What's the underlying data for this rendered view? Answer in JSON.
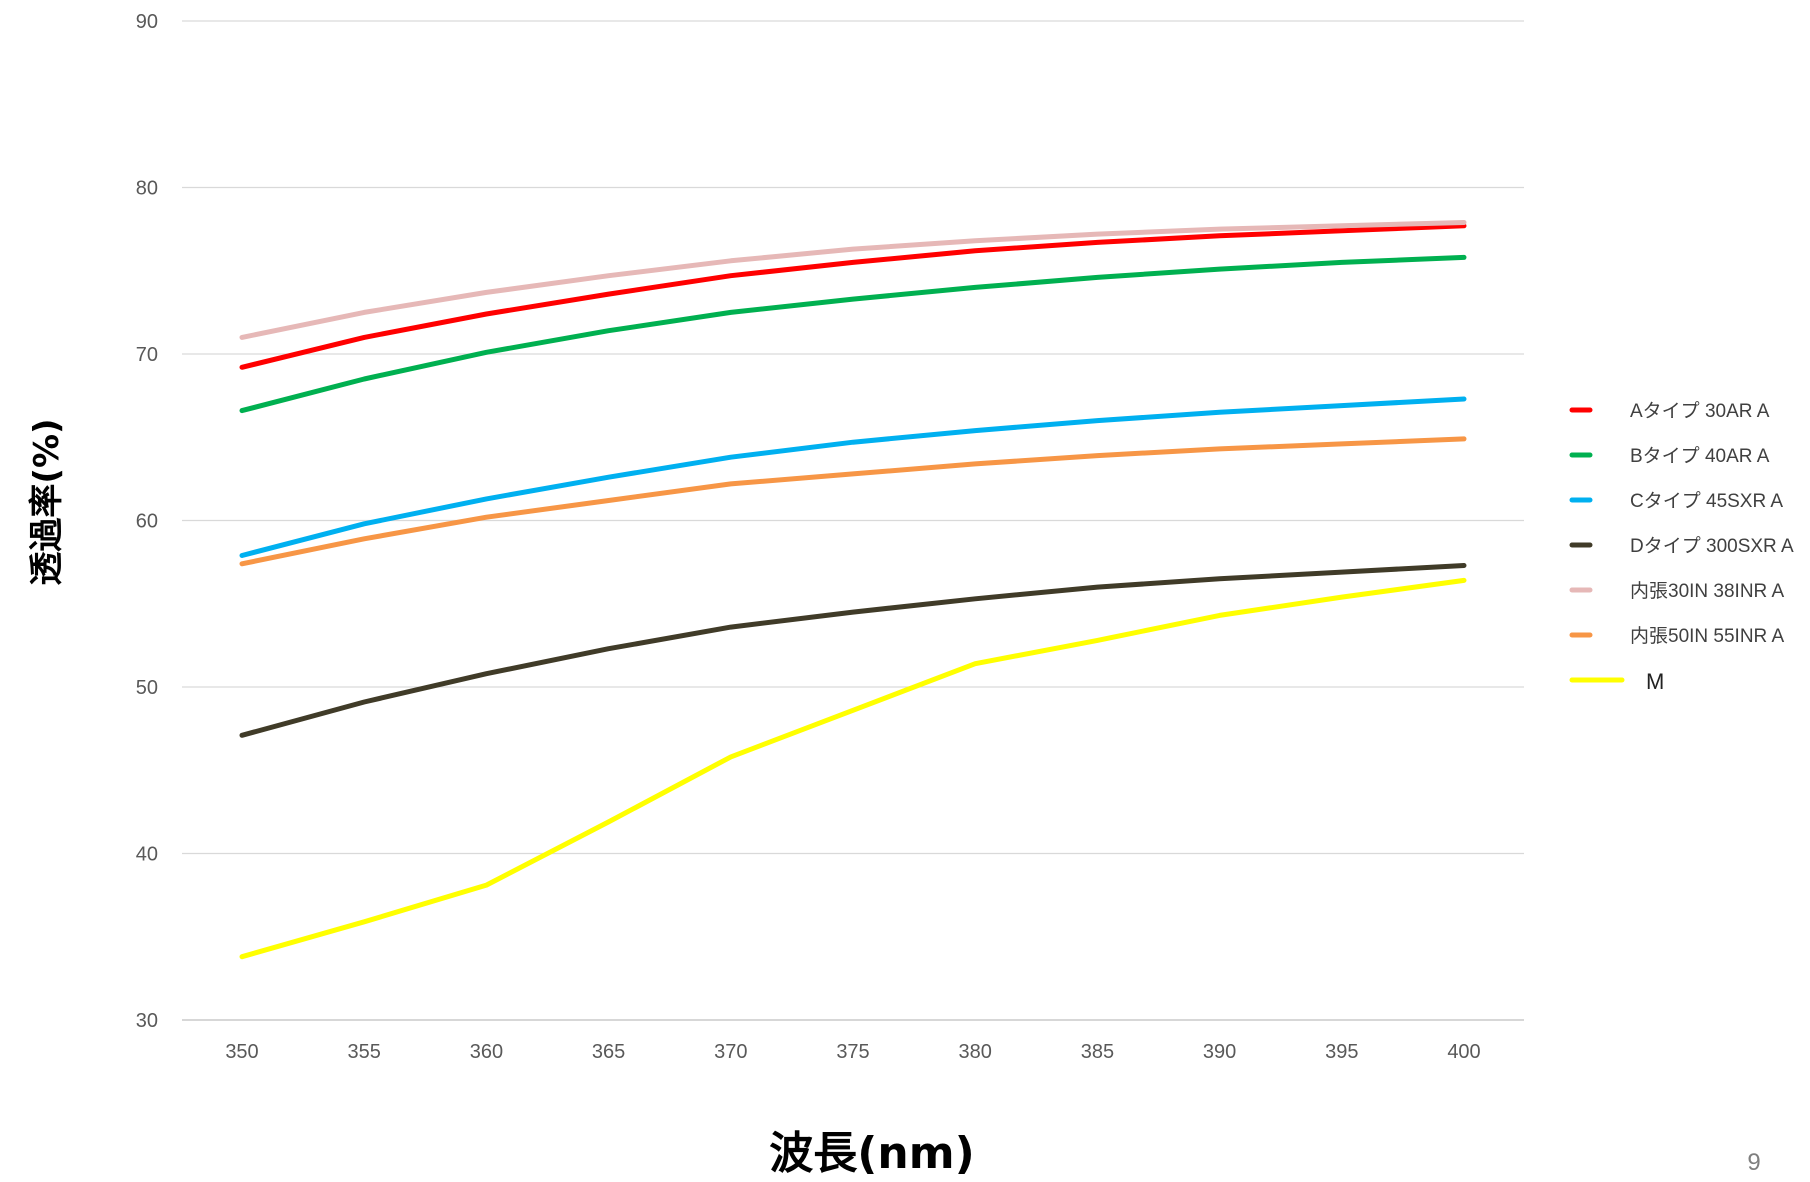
{
  "page_number": "9",
  "chart_data": {
    "type": "line",
    "title": "",
    "xlabel": "波長(nm)",
    "ylabel": "透過率(%)",
    "x": [
      350,
      355,
      360,
      365,
      370,
      375,
      380,
      385,
      390,
      395,
      400
    ],
    "x_tick_labels": [
      "350",
      "355",
      "360",
      "365",
      "370",
      "375",
      "380",
      "385",
      "390",
      "395",
      "400"
    ],
    "ylim": [
      30,
      90
    ],
    "y_ticks": [
      30,
      40,
      50,
      60,
      70,
      80,
      90
    ],
    "y_tick_labels": [
      "30",
      "40",
      "50",
      "60",
      "70",
      "80",
      "90"
    ],
    "grid": true,
    "legend_position": "right",
    "series": [
      {
        "name": "Aタイプ 30AR A",
        "color": "#ff0000",
        "values": [
          69.2,
          71.0,
          72.4,
          73.6,
          74.7,
          75.5,
          76.2,
          76.7,
          77.1,
          77.4,
          77.7
        ]
      },
      {
        "name": "Bタイプ 40AR A",
        "color": "#00b050",
        "values": [
          66.6,
          68.5,
          70.1,
          71.4,
          72.5,
          73.3,
          74.0,
          74.6,
          75.1,
          75.5,
          75.8
        ]
      },
      {
        "name": "Cタイプ 45SXR A",
        "color": "#00b0f0",
        "values": [
          57.9,
          59.8,
          61.3,
          62.6,
          63.8,
          64.7,
          65.4,
          66.0,
          66.5,
          66.9,
          67.3
        ]
      },
      {
        "name": "Dタイプ 300SXR A",
        "color": "#403b28",
        "values": [
          47.1,
          49.1,
          50.8,
          52.3,
          53.6,
          54.5,
          55.3,
          56.0,
          56.5,
          56.9,
          57.3
        ]
      },
      {
        "name": "内張30IN 38INR A",
        "color": "#e6b8b7",
        "values": [
          71.0,
          72.5,
          73.7,
          74.7,
          75.6,
          76.3,
          76.8,
          77.2,
          77.5,
          77.7,
          77.9
        ]
      },
      {
        "name": "内張50IN 55INR A",
        "color": "#f79646",
        "values": [
          57.4,
          58.9,
          60.2,
          61.2,
          62.2,
          62.8,
          63.4,
          63.9,
          64.3,
          64.6,
          64.9
        ]
      },
      {
        "name": "M",
        "color": "#ffff00",
        "values": [
          33.8,
          35.9,
          38.1,
          41.9,
          45.8,
          48.6,
          51.4,
          52.8,
          54.3,
          55.4,
          56.4
        ]
      }
    ]
  }
}
